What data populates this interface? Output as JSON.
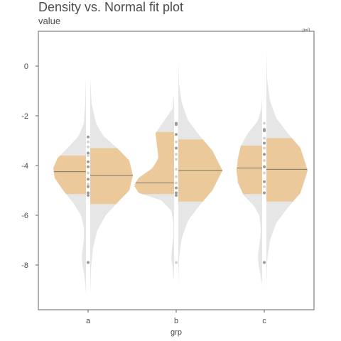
{
  "header": {
    "title": "Density vs. Normal fit plot",
    "subtitle": "value",
    "p_label": "p=0"
  },
  "colors": {
    "density_fill": "#e6e6e6",
    "central_fill": "#ecc99b",
    "median_line": "#555555",
    "point_dark": "#9a9a9a",
    "point_light": "#d3d3d3",
    "panel_border": "#666666",
    "strip_fill": "#ffffff"
  },
  "chart_data": {
    "type": "violin",
    "title": "Density vs. Normal fit plot",
    "subtitle": "value",
    "xlabel": "grp",
    "ylabel": "",
    "categories": [
      "a",
      "b",
      "c"
    ],
    "yticks": [
      0,
      -2,
      -4,
      -6,
      -8
    ],
    "ylim": [
      -9.8,
      1.4
    ],
    "annotation": "p=0",
    "groups": [
      {
        "name": "a",
        "empirical": {
          "y": [
            -0.5,
            -1.5,
            -2.3,
            -2.8,
            -3.3,
            -3.7,
            -4.1,
            -4.5,
            -5.0,
            -5.5,
            -6.0,
            -6.5,
            -7.0,
            -7.4,
            -7.7,
            -8.0,
            -8.3,
            -8.7,
            -9.2
          ],
          "width": [
            0.0,
            0.01,
            0.03,
            0.1,
            0.26,
            0.4,
            0.46,
            0.44,
            0.32,
            0.18,
            0.07,
            0.03,
            0.03,
            0.05,
            0.06,
            0.05,
            0.03,
            0.01,
            0.0
          ],
          "box": [
            -5.15,
            -3.6
          ],
          "median": -4.25
        },
        "normal_fit": {
          "y": [
            -0.5,
            -1.5,
            -2.3,
            -2.8,
            -3.3,
            -3.8,
            -4.4,
            -5.0,
            -5.5,
            -6.0,
            -6.6,
            -7.3,
            -8.0,
            -8.6,
            -9.2
          ],
          "width": [
            0.0,
            0.02,
            0.08,
            0.18,
            0.38,
            0.55,
            0.6,
            0.55,
            0.38,
            0.22,
            0.1,
            0.04,
            0.015,
            0.005,
            0.0
          ],
          "box": [
            -5.55,
            -3.3
          ],
          "median": -4.4
        },
        "points": {
          "values": [
            -2.85,
            -3.05,
            -3.25,
            -3.5,
            -3.6,
            -3.85,
            -4.05,
            -4.3,
            -4.55,
            -4.75,
            -4.85,
            -5.1,
            -5.2,
            -7.9
          ],
          "dark": [
            true,
            false,
            false,
            true,
            false,
            true,
            true,
            false,
            true,
            false,
            true,
            true,
            true,
            true
          ]
        }
      },
      {
        "name": "b",
        "empirical": {
          "y": [
            -1.2,
            -1.7,
            -2.2,
            -2.7,
            -3.2,
            -3.7,
            -4.1,
            -4.5,
            -4.8,
            -5.1,
            -5.4,
            -5.8,
            -6.3,
            -6.9,
            -7.3,
            -7.7,
            -8.1,
            -8.6
          ],
          "width": [
            0.0,
            0.02,
            0.14,
            0.26,
            0.24,
            0.22,
            0.3,
            0.5,
            0.56,
            0.5,
            0.18,
            0.04,
            0.01,
            0.01,
            0.03,
            0.04,
            0.02,
            0.0
          ],
          "box": [
            -5.15,
            -2.65
          ],
          "median": -4.7
        },
        "normal_fit": {
          "y": [
            0.2,
            -0.7,
            -1.5,
            -2.2,
            -2.8,
            -3.4,
            -4.2,
            -5.0,
            -5.6,
            -6.2,
            -6.9,
            -7.6,
            -8.2,
            -8.8
          ],
          "width": [
            0.0,
            0.01,
            0.05,
            0.14,
            0.3,
            0.48,
            0.62,
            0.48,
            0.3,
            0.14,
            0.05,
            0.015,
            0.005,
            0.0
          ],
          "box": [
            -5.45,
            -2.95
          ],
          "median": -4.2
        },
        "points": {
          "values": [
            -2.3,
            -2.35,
            -2.75,
            -3.05,
            -3.3,
            -3.55,
            -3.75,
            -4.15,
            -4.45,
            -4.7,
            -4.9,
            -5.1,
            -5.2,
            -7.9
          ],
          "dark": [
            true,
            true,
            true,
            false,
            true,
            false,
            false,
            false,
            false,
            false,
            true,
            true,
            true,
            false
          ]
        }
      },
      {
        "name": "c",
        "empirical": {
          "y": [
            -1.2,
            -1.7,
            -2.2,
            -2.7,
            -3.2,
            -3.7,
            -4.2,
            -4.7,
            -5.2,
            -5.6,
            -6.0,
            -6.5,
            -7.0,
            -7.4,
            -7.7,
            -8.0,
            -8.3,
            -8.8
          ],
          "width": [
            0.0,
            0.01,
            0.06,
            0.2,
            0.3,
            0.34,
            0.36,
            0.34,
            0.26,
            0.12,
            0.04,
            0.02,
            0.03,
            0.05,
            0.06,
            0.05,
            0.03,
            0.0
          ],
          "box": [
            -5.15,
            -3.2
          ],
          "median": -4.1
        },
        "normal_fit": {
          "y": [
            0.6,
            -0.5,
            -1.4,
            -2.1,
            -2.7,
            -3.3,
            -4.2,
            -5.1,
            -5.7,
            -6.3,
            -7.0,
            -7.7,
            -8.3,
            -9.0
          ],
          "width": [
            0.0,
            0.01,
            0.05,
            0.14,
            0.3,
            0.48,
            0.58,
            0.48,
            0.3,
            0.14,
            0.05,
            0.015,
            0.005,
            0.0
          ],
          "box": [
            -5.45,
            -2.9
          ],
          "median": -4.15
        },
        "points": {
          "values": [
            -2.3,
            -2.55,
            -2.6,
            -2.9,
            -3.1,
            -3.3,
            -3.55,
            -3.8,
            -4.05,
            -4.3,
            -4.65,
            -4.85,
            -5.1,
            -7.9
          ],
          "dark": [
            false,
            true,
            true,
            false,
            true,
            false,
            true,
            false,
            true,
            false,
            true,
            false,
            true,
            true
          ]
        }
      }
    ]
  }
}
